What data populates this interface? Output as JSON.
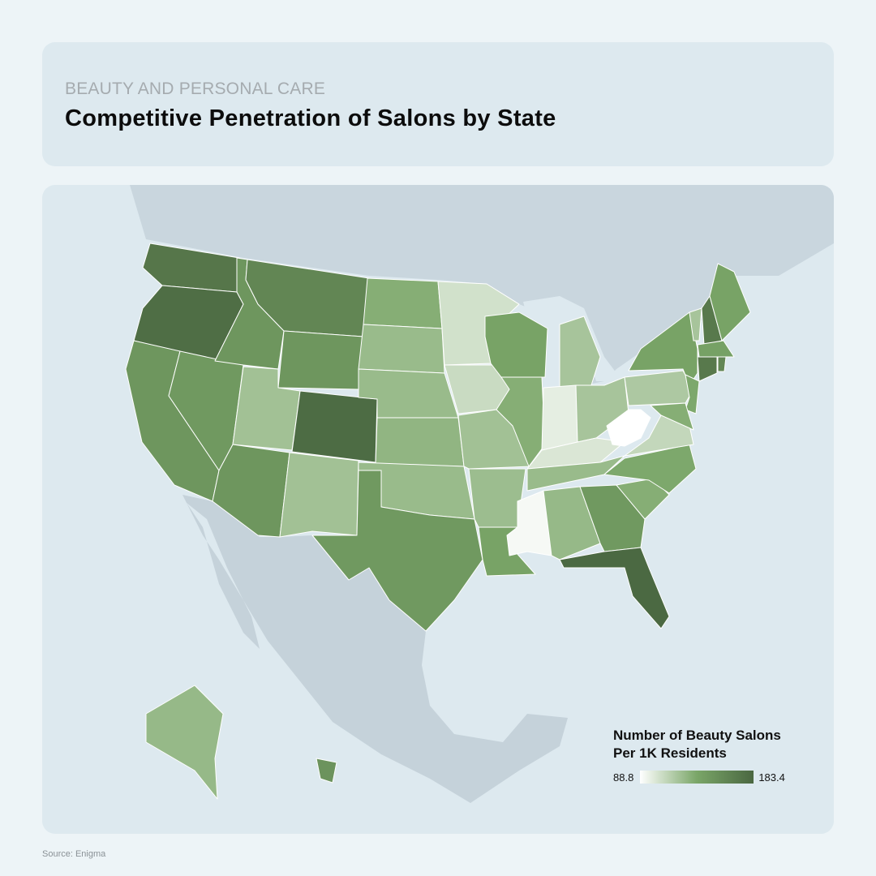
{
  "header": {
    "kicker": "BEAUTY AND PERSONAL CARE",
    "title": "Competitive Penetration of Salons by State"
  },
  "chart_data": {
    "type": "choropleth",
    "values": [
      172,
      178,
      148,
      146,
      148,
      160,
      148,
      122,
      180,
      148,
      122,
      132,
      125,
      125,
      128,
      125,
      146,
      105,
      108,
      122,
      124,
      138,
      138,
      132,
      120,
      98,
      120,
      102,
      125,
      92,
      126,
      146,
      182,
      132,
      135,
      110,
      88.8,
      118,
      138,
      135,
      132,
      120,
      170,
      138,
      140,
      170,
      160,
      126,
      150
    ],
    "colors": [
      "#ffffff",
      "#7aa668",
      "#4a6741"
    ],
    "legend": {
      "title": "Number of Beauty Salons Per 1K Residents",
      "min": 88.8,
      "max": 183.4
    }
  },
  "source": "Source: Enigma"
}
